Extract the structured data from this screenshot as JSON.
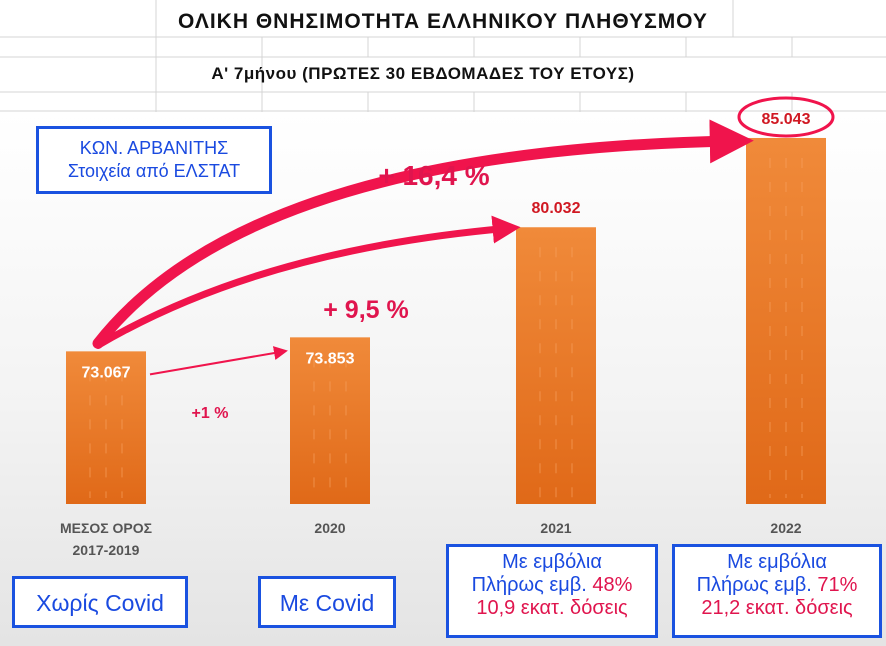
{
  "header": {
    "title": "ΟΛΙΚΗ ΘΝΗΣΙΜΟΤΗΤΑ ΕΛΛΗΝΙΚΟΥ ΠΛΗΘΥΣΜΟΥ",
    "subtitle": "Α' 7μήνου (ΠΡΩΤΕΣ 30 ΕΒΔΟΜΑΔΕΣ ΤΟΥ ΕΤΟΥΣ)"
  },
  "author_box": {
    "line1": "ΚΩΝ. ΑΡΒΑΝΙΤΗΣ",
    "line2": "Στοιχεία από ΕΛΣΤΑΤ"
  },
  "chart_data": {
    "type": "bar",
    "categories": [
      "ΜΕΣΟΣ ΟΡΟΣ 2017-2019",
      "2020",
      "2021",
      "2022"
    ],
    "category_lines": [
      [
        "ΜΕΣΟΣ ΟΡΟΣ",
        "2017-2019"
      ],
      [
        "2020"
      ],
      [
        "2021"
      ],
      [
        "2022"
      ]
    ],
    "values": [
      73067,
      73853,
      80032,
      85043
    ],
    "value_labels": [
      "73.067",
      "73.853",
      "80.032",
      "85.043"
    ],
    "ylim": [
      64500,
      86500
    ],
    "bar_color": "#e8742a",
    "annotations": [
      {
        "from": 0,
        "to": 1,
        "label": "+1 %"
      },
      {
        "from": 0,
        "to": 2,
        "label": "+ 9,5 %"
      },
      {
        "from": 0,
        "to": 3,
        "label": "+ 16,4 %"
      }
    ],
    "highlight": "85.043"
  },
  "boxes": {
    "no_covid": "Χωρίς Covid",
    "with_covid": "Με Covid",
    "y2021": {
      "line1": "Με εμβόλια",
      "line2_prefix": "Πλήρως εμβ.",
      "line2_pct": "48%",
      "line3": "10,9 εκατ. δόσεις"
    },
    "y2022": {
      "line1": "Με εμβόλια",
      "line2_prefix": "Πλήρως εμβ.",
      "line2_pct": "71%",
      "line3": "21,2  εκατ. δόσεις"
    }
  },
  "colors": {
    "accent": "#f0144c",
    "label_red": "#d01822",
    "box_blue": "#1a52e0"
  }
}
